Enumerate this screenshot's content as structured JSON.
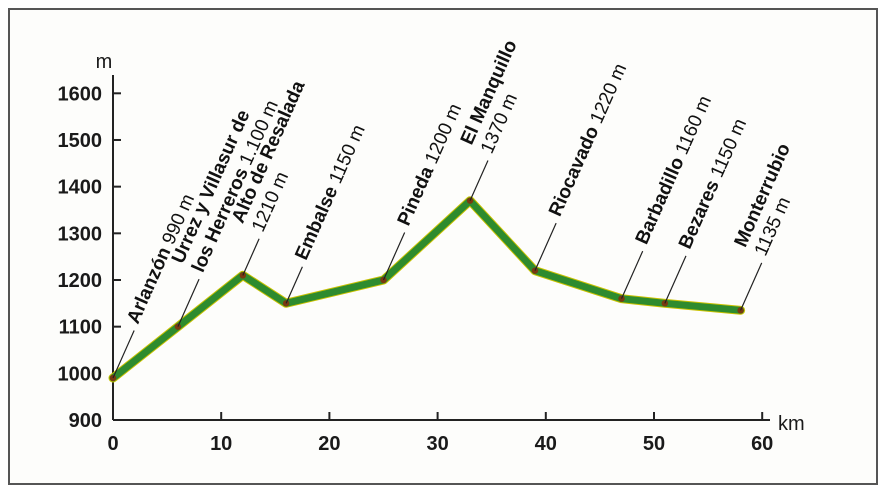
{
  "chart_data": {
    "type": "line",
    "xlabel": "km",
    "ylabel": "m",
    "xlim": [
      0,
      60
    ],
    "ylim": [
      900,
      1650
    ],
    "x_ticks": [
      "0",
      "10",
      "20",
      "30",
      "40",
      "50",
      "60"
    ],
    "y_ticks": [
      "900",
      "1000",
      "1100",
      "1200",
      "1300",
      "1400",
      "1500",
      "1600"
    ],
    "line_color": "#2e8b2e",
    "grid": false,
    "points": [
      {
        "x": 0,
        "y": 990,
        "label_lines": [
          {
            "name": "Arlanzón",
            "elev": " 990 m"
          }
        ]
      },
      {
        "x": 6,
        "y": 1100,
        "label_lines": [
          {
            "name": "Urrez y Villasur de",
            "elev": ""
          },
          {
            "name": "los Herreros",
            "elev": " 1.100 m"
          }
        ]
      },
      {
        "x": 12,
        "y": 1210,
        "label_lines": [
          {
            "name": "Alto de Resalada",
            "elev": ""
          },
          {
            "name": "",
            "elev": "1210 m"
          }
        ]
      },
      {
        "x": 16,
        "y": 1150,
        "label_lines": [
          {
            "name": "Embalse",
            "elev": "  1150 m"
          }
        ]
      },
      {
        "x": 25,
        "y": 1200,
        "label_lines": [
          {
            "name": "Pineda",
            "elev": " 1200 m"
          }
        ]
      },
      {
        "x": 33,
        "y": 1370,
        "label_lines": [
          {
            "name": "El Manquillo",
            "elev": ""
          },
          {
            "name": "",
            "elev": "1370 m"
          }
        ]
      },
      {
        "x": 39,
        "y": 1220,
        "label_lines": [
          {
            "name": "Riocavado",
            "elev": " 1220 m"
          }
        ]
      },
      {
        "x": 47,
        "y": 1160,
        "label_lines": [
          {
            "name": "Barbadillo",
            "elev": " 1160 m"
          }
        ]
      },
      {
        "x": 51,
        "y": 1150,
        "label_lines": [
          {
            "name": "Bezares",
            "elev": " 1150 m"
          }
        ]
      },
      {
        "x": 58,
        "y": 1135,
        "label_lines": [
          {
            "name": "Monterrubio",
            "elev": ""
          },
          {
            "name": "",
            "elev": "1135 m"
          }
        ]
      }
    ]
  }
}
